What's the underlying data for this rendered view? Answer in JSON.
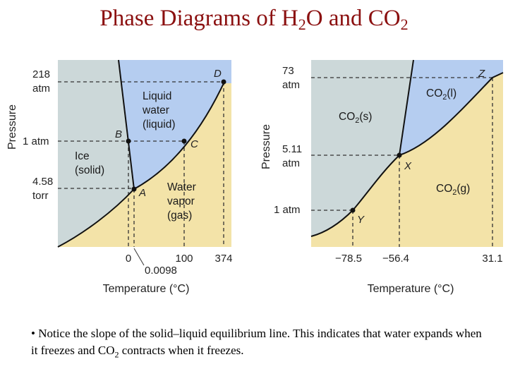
{
  "title": {
    "prefix": "Phase Diagrams of H",
    "sub1": "2",
    "middle": "O and CO",
    "sub2": "2"
  },
  "h2o": {
    "y_axis_label": "Pressure",
    "x_axis_label": "Temperature (°C)",
    "pressure_ticks": [
      {
        "line1": "218",
        "line2": "atm"
      },
      {
        "line1": "1 atm",
        "line2": ""
      },
      {
        "line1": "4.58",
        "line2": "torr"
      }
    ],
    "temperature_ticks": [
      "0",
      "100",
      "374"
    ],
    "temp_callout": "0.0098",
    "regions": {
      "liquid": [
        "Liquid",
        "water",
        "(liquid)"
      ],
      "solid": [
        "Ice",
        "(solid)"
      ],
      "gas": [
        "Water",
        "vapor",
        "(gas)"
      ]
    },
    "points": [
      "A",
      "B",
      "C",
      "D"
    ]
  },
  "co2": {
    "y_axis_label": "Pressure",
    "x_axis_label": "Temperature (°C)",
    "pressure_ticks": [
      {
        "line1": "73",
        "line2": "atm"
      },
      {
        "line1": "5.11",
        "line2": "atm"
      },
      {
        "line1": "1 atm",
        "line2": ""
      }
    ],
    "temperature_ticks": [
      "−78.5",
      "−56.4",
      "31.1"
    ],
    "regions": {
      "solid": {
        "base": "CO",
        "sub": "2",
        "phase": "(s)"
      },
      "liquid": {
        "base": "CO",
        "sub": "2",
        "phase": "(l)"
      },
      "gas": {
        "base": "CO",
        "sub": "2",
        "phase": "(g)"
      }
    },
    "points": [
      "X",
      "Y",
      "Z"
    ]
  },
  "note": {
    "part1": "• Notice the slope of the solid–liquid equilibrium line.  This indicates that water expands when it freezes and CO",
    "sub": "2",
    "part2": " contracts when it freezes."
  },
  "colors": {
    "title": "#8b1010",
    "solid_region": "#ccd8d9",
    "liquid_region": "#b5cdf0",
    "gas_region": "#f3e3a8"
  }
}
